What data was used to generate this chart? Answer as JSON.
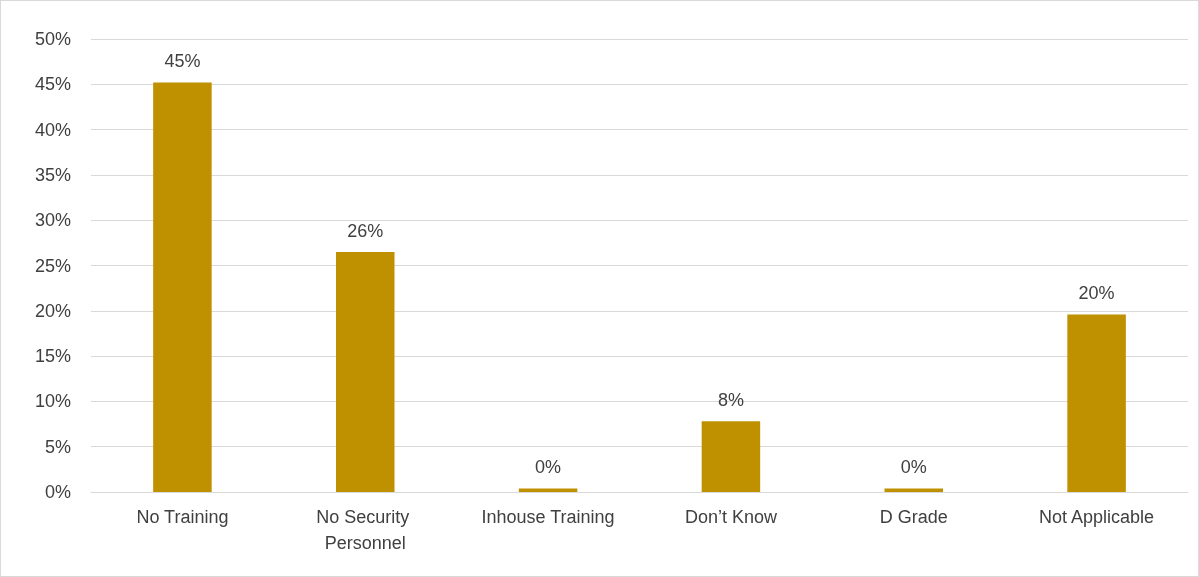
{
  "chart_data": {
    "type": "bar",
    "categories": [
      "No Training",
      "No Security Personnel",
      "Inhouse Training",
      "Don’t Know",
      "D Grade",
      "Not Applicable"
    ],
    "values": [
      45.2,
      26.5,
      0.4,
      7.8,
      0.4,
      19.6
    ],
    "value_labels": [
      "45%",
      "26%",
      "0%",
      "8%",
      "0%",
      "20%"
    ],
    "color": "#bf9000",
    "ylim": [
      0,
      50
    ],
    "yticks": [
      {
        "value": 0,
        "label": "0%"
      },
      {
        "value": 5,
        "label": "5%"
      },
      {
        "value": 10,
        "label": "10%"
      },
      {
        "value": 15,
        "label": "15%"
      },
      {
        "value": 20,
        "label": "20%"
      },
      {
        "value": 25,
        "label": "25%"
      },
      {
        "value": 30,
        "label": "30%"
      },
      {
        "value": 35,
        "label": "35%"
      },
      {
        "value": 40,
        "label": "40%"
      },
      {
        "value": 45,
        "label": "45%"
      },
      {
        "value": 50,
        "label": "50%"
      }
    ],
    "grid": "y"
  }
}
